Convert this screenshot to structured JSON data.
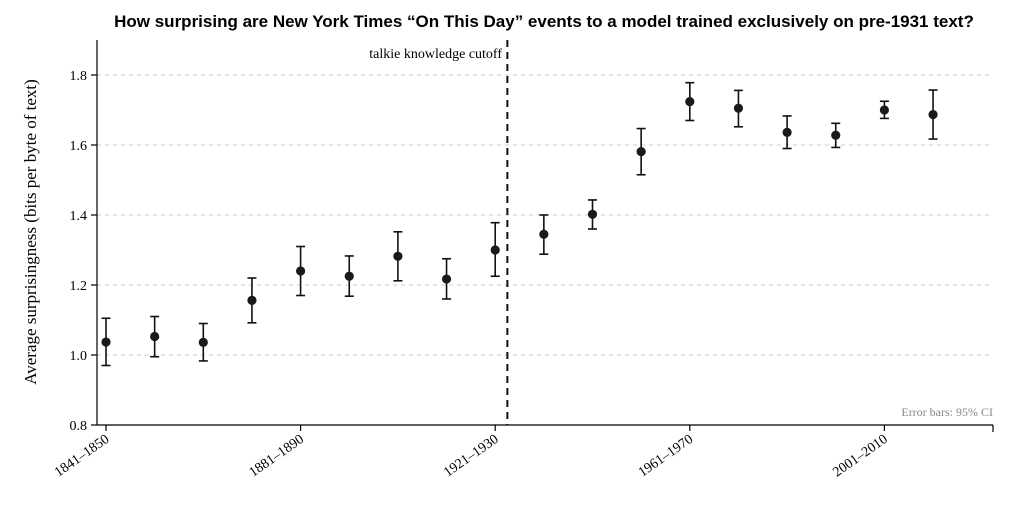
{
  "chart_data": {
    "type": "scatter",
    "title": "How surprising are New York Times “On This Day” events to a model trained exclusively on pre-1931 text?",
    "ylabel": "Average surprisingness (bits per byte of text)",
    "xlabel": "",
    "ylim": [
      0.8,
      1.9
    ],
    "yticks": [
      0.8,
      1.0,
      1.2,
      1.4,
      1.6,
      1.8
    ],
    "grid": true,
    "categories": [
      "1841–1850",
      "1851–1860",
      "1861–1870",
      "1871–1880",
      "1881–1890",
      "1891–1900",
      "1901–1910",
      "1911–1920",
      "1921–1930",
      "1931–1940",
      "1941–1950",
      "1951–1960",
      "1961–1970",
      "1971–1980",
      "1981–1990",
      "1991–2000",
      "2001–2010",
      "2011–2020"
    ],
    "xtick_labels": [
      "1841–1850",
      "1881–1890",
      "1921–1930",
      "1961–1970",
      "2001–2010"
    ],
    "values": [
      1.037,
      1.053,
      1.036,
      1.156,
      1.24,
      1.225,
      1.282,
      1.217,
      1.3,
      1.345,
      1.402,
      1.581,
      1.724,
      1.705,
      1.636,
      1.628,
      1.7,
      1.687
    ],
    "ci_low": [
      0.97,
      0.995,
      0.983,
      1.092,
      1.17,
      1.168,
      1.212,
      1.16,
      1.225,
      1.288,
      1.36,
      1.515,
      1.67,
      1.652,
      1.59,
      1.593,
      1.676,
      1.617
    ],
    "ci_high": [
      1.105,
      1.11,
      1.09,
      1.22,
      1.31,
      1.283,
      1.352,
      1.275,
      1.378,
      1.4,
      1.443,
      1.647,
      1.778,
      1.756,
      1.683,
      1.662,
      1.725,
      1.757
    ],
    "cutoff": {
      "label": "talkie knowledge cutoff"
    },
    "note": "Error bars: 95% CI",
    "colors": {
      "points": "#1a1a1a",
      "grid": "#cccccc",
      "note": "#888888"
    }
  }
}
